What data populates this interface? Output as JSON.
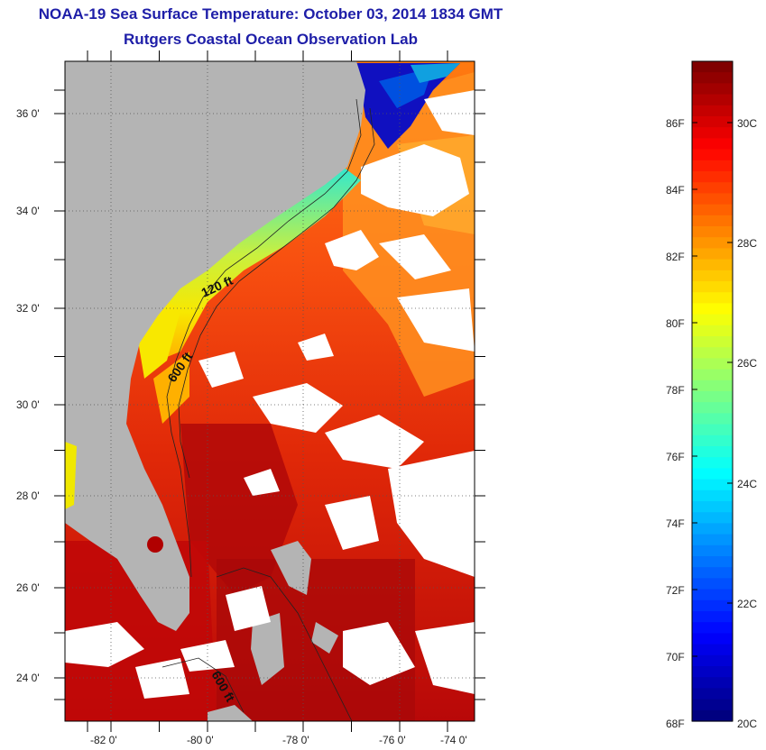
{
  "title_line1": "NOAA-19 Sea Surface Temperature:  October 03, 2014 1834 GMT",
  "title_line2": "Rutgers Coastal Ocean Observation Lab",
  "axes": {
    "lat_ticks": [
      "36 0'",
      "34 0'",
      "32 0'",
      "30 0'",
      "28 0'",
      "26 0'",
      "24 0'"
    ],
    "lon_ticks": [
      "-82 0'",
      "-80 0'",
      "-78 0'",
      "-76 0'",
      "-74 0'"
    ]
  },
  "isobaths": [
    "120 ft",
    "600 ft",
    "600 ft"
  ],
  "colors": {
    "land": "#b4b4b4",
    "cloud": "#ffffff",
    "title": "#1e1ea8"
  },
  "colorbar": {
    "fahrenheit_labels": [
      "86F",
      "84F",
      "82F",
      "80F",
      "78F",
      "76F",
      "74F",
      "72F",
      "70F",
      "68F"
    ],
    "celsius_labels": [
      "30C",
      "28C",
      "26C",
      "24C",
      "22C",
      "20C"
    ],
    "range_f": [
      68,
      88
    ],
    "range_c": [
      20,
      31
    ],
    "colormap": "jet"
  }
}
